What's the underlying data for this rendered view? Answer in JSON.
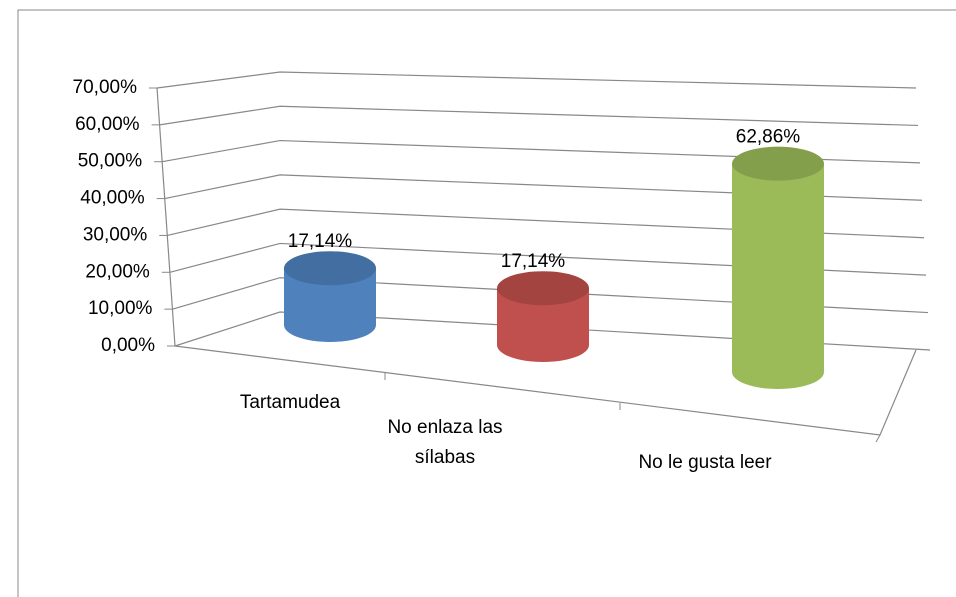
{
  "chart_data": {
    "type": "bar3d-cylinder",
    "categories": [
      "Tartamudea",
      "No enlaza las sílabas",
      "No le gusta leer"
    ],
    "values": [
      17.14,
      17.14,
      62.86
    ],
    "value_labels": [
      "17,14%",
      "17,14%",
      "62,86%"
    ],
    "colors": [
      "#4f81bd",
      "#c0504d",
      "#9bbb59"
    ],
    "ylim": [
      0,
      70
    ],
    "yticks": [
      {
        "value": 0,
        "label": "0,00%"
      },
      {
        "value": 10,
        "label": "10,00%"
      },
      {
        "value": 20,
        "label": "20,00%"
      },
      {
        "value": 30,
        "label": "30,00%"
      },
      {
        "value": 40,
        "label": "40,00%"
      },
      {
        "value": 50,
        "label": "50,00%"
      },
      {
        "value": 60,
        "label": "60,00%"
      },
      {
        "value": 70,
        "label": "70,00%"
      }
    ],
    "grid": true
  }
}
